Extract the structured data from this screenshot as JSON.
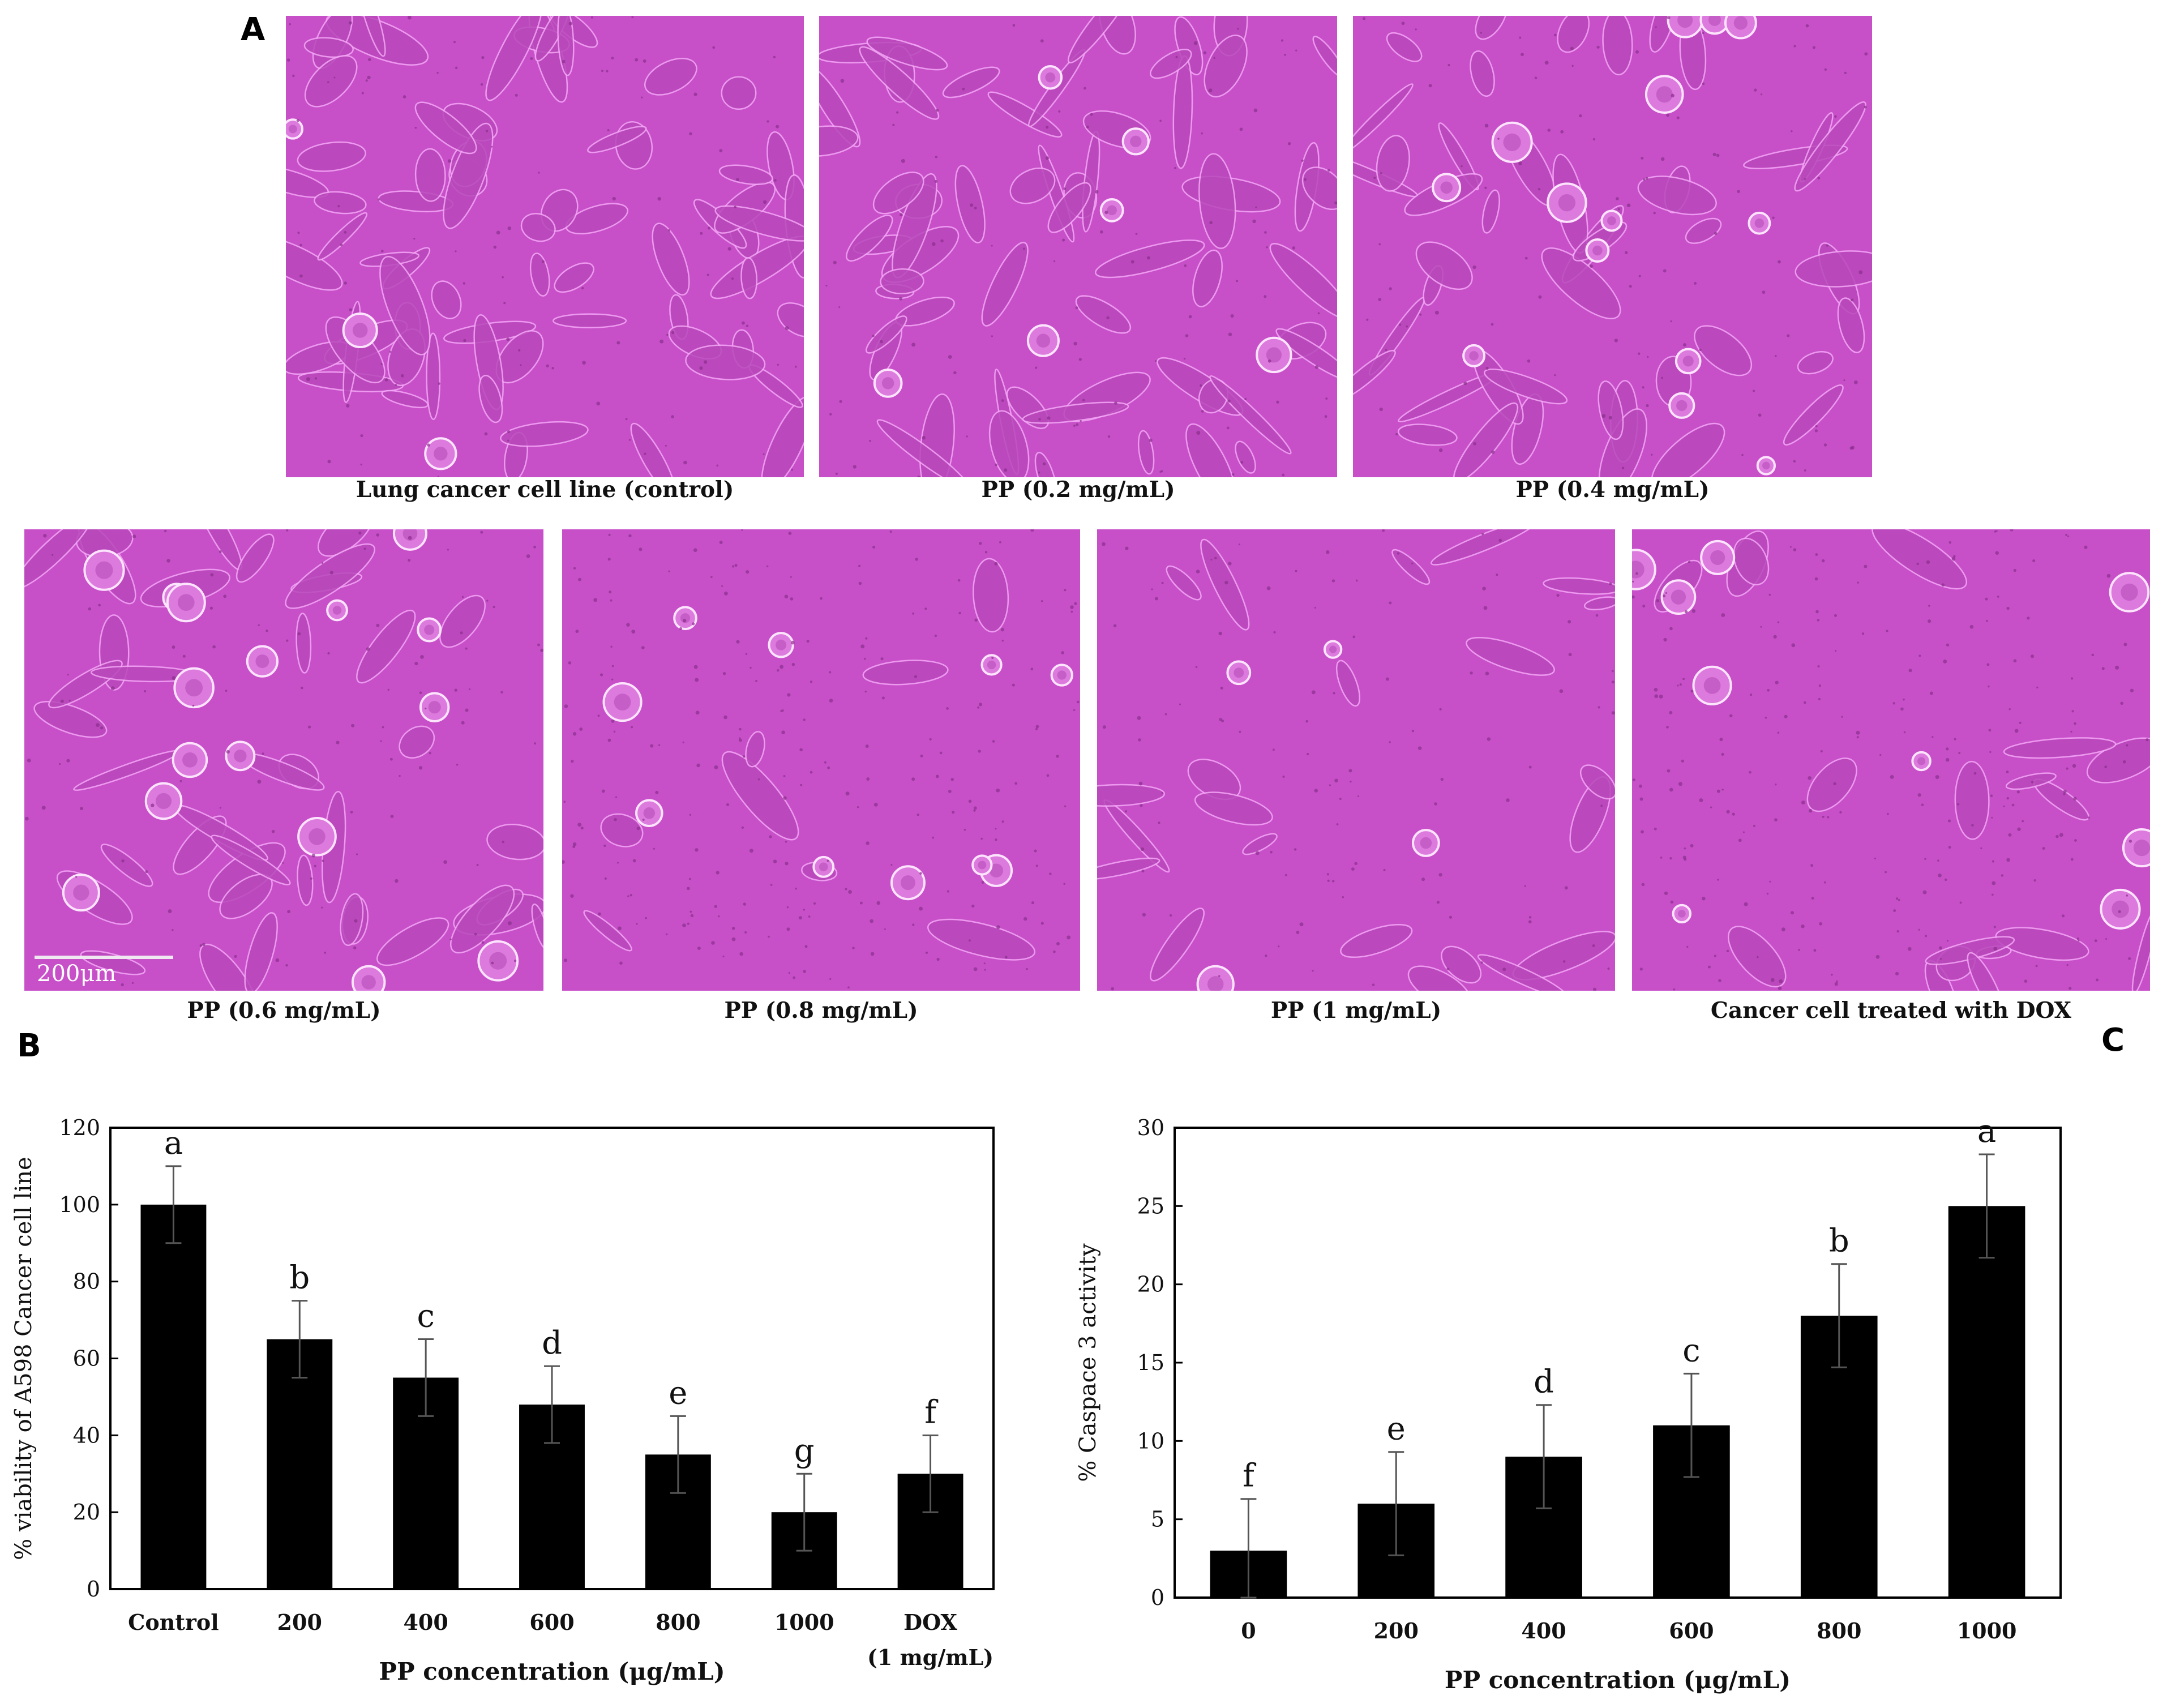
{
  "panels": {
    "a_label": "A",
    "b_label": "B",
    "c_label": "C"
  },
  "micrographs": [
    {
      "caption": "Lung cancer cell line (control)",
      "state": "dense-elongated"
    },
    {
      "caption": "PP (0.2 mg/mL)",
      "state": "dense-few-round"
    },
    {
      "caption": "PP (0.4 mg/mL)",
      "state": "rounded-clusters"
    },
    {
      "caption": "PP (0.6 mg/mL)",
      "state": "mixed-rounded",
      "scale_bar": "200μm"
    },
    {
      "caption": "PP (0.8 mg/mL)",
      "state": "sparse"
    },
    {
      "caption": "PP (1 mg/mL)",
      "state": "fragmented"
    },
    {
      "caption": "Cancer cell treated with DOX",
      "state": "granular"
    }
  ],
  "colors": {
    "micro_bg": "#cc55cc",
    "bar": "#000000"
  },
  "chart_data": [
    {
      "type": "bar",
      "title": "",
      "xlabel": "PP concentration (μg/mL)",
      "ylabel": "% viability of A598 Cancer cell line",
      "categories": [
        "Control",
        "200",
        "400",
        "600",
        "800",
        "1000",
        "DOX (1 mg/mL)"
      ],
      "category_lines": [
        [
          "Control"
        ],
        [
          "200"
        ],
        [
          "400"
        ],
        [
          "600"
        ],
        [
          "800"
        ],
        [
          "1000"
        ],
        [
          "DOX",
          "(1 mg/mL)"
        ]
      ],
      "values": [
        100,
        65,
        55,
        48,
        35,
        20,
        30
      ],
      "errors": [
        10,
        10,
        10,
        10,
        10,
        10,
        10
      ],
      "letters": [
        "a",
        "b",
        "c",
        "d",
        "e",
        "g",
        "f"
      ],
      "ylim": [
        0,
        120
      ],
      "yticks": [
        0,
        20,
        40,
        60,
        80,
        100,
        120
      ],
      "grid": false
    },
    {
      "type": "bar",
      "title": "",
      "xlabel": "PP concentration (μg/mL)",
      "ylabel": "% Caspace 3 activity",
      "categories": [
        "0",
        "200",
        "400",
        "600",
        "800",
        "1000"
      ],
      "category_lines": [
        [
          "0"
        ],
        [
          "200"
        ],
        [
          "400"
        ],
        [
          "600"
        ],
        [
          "800"
        ],
        [
          "1000"
        ]
      ],
      "values": [
        3,
        6,
        9,
        11,
        18,
        25
      ],
      "errors": [
        3.3,
        3.3,
        3.3,
        3.3,
        3.3,
        3.3
      ],
      "letters": [
        "f",
        "e",
        "d",
        "c",
        "b",
        "a"
      ],
      "ylim": [
        0,
        30
      ],
      "yticks": [
        0,
        5,
        10,
        15,
        20,
        25,
        30
      ],
      "grid": false
    }
  ]
}
